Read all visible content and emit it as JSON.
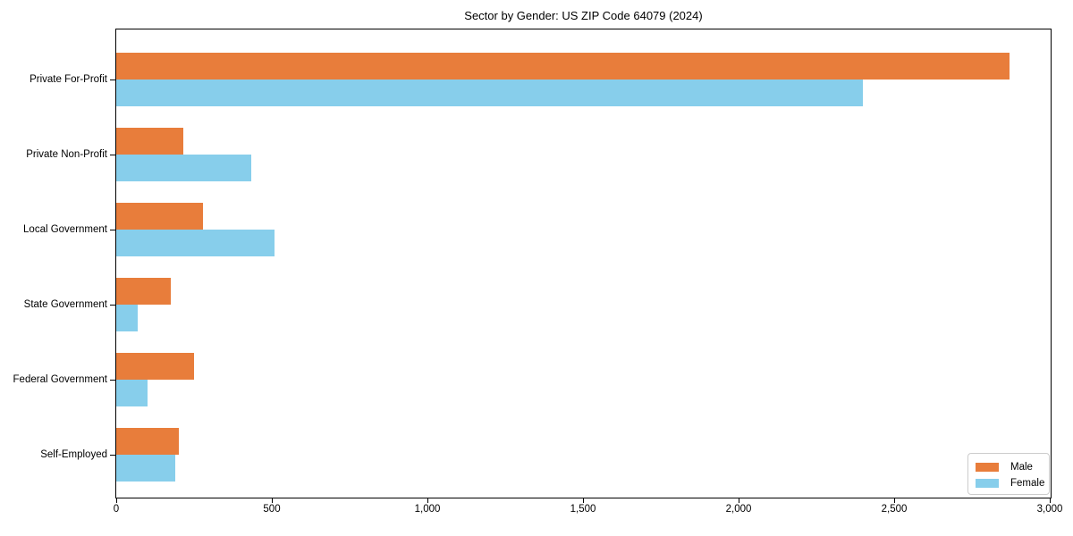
{
  "chart_data": {
    "type": "bar",
    "orientation": "horizontal",
    "title": "Sector by Gender: US ZIP Code 64079 (2024)",
    "categories": [
      "Private For-Profit",
      "Private Non-Profit",
      "Local Government",
      "State Government",
      "Federal Government",
      "Self-Employed"
    ],
    "series": [
      {
        "name": "Male",
        "color": "#E87D3B",
        "values": [
          2870,
          215,
          280,
          175,
          250,
          200
        ]
      },
      {
        "name": "Female",
        "color": "#87CEEB",
        "values": [
          2400,
          435,
          510,
          70,
          100,
          190
        ]
      }
    ],
    "xlim": [
      0,
      3000
    ],
    "xticks": [
      0,
      500,
      1000,
      1500,
      2000,
      2500,
      3000
    ],
    "xtick_labels": [
      "0",
      "500",
      "1,000",
      "1,500",
      "2,000",
      "2,500",
      "3,000"
    ],
    "xlabel": "",
    "ylabel": "",
    "grid": false,
    "legend_position": "lower right",
    "frame_color": "#000000",
    "background_color": "#ffffff",
    "legend_border_color": "#cccccc"
  }
}
